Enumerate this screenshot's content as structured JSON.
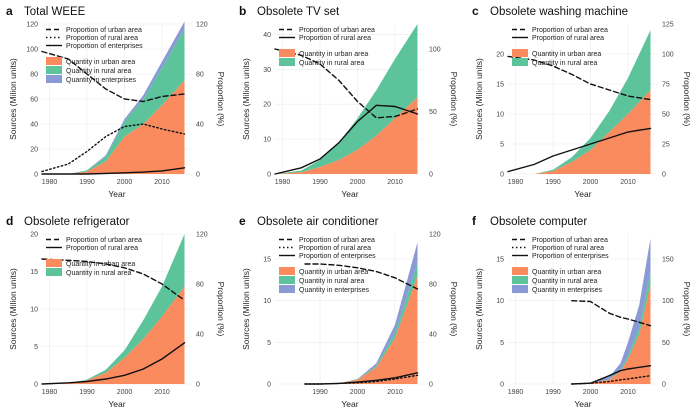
{
  "figure": {
    "xlabel": "Year",
    "ylabel": "Sources (Milion units)",
    "y2label": "Proportion (%)",
    "colors": {
      "urban_fill": "#f98b5e",
      "rural_fill": "#5cc39a",
      "enterprise_fill": "#8a9ad6",
      "line": "#111111"
    }
  },
  "chart_data": [
    {
      "letter": "a",
      "title": "Total WEEE",
      "type": "area",
      "x": [
        1978,
        1985,
        1990,
        1995,
        2000,
        2005,
        2010,
        2016
      ],
      "ylim": [
        0,
        120
      ],
      "yticks": [
        0,
        20,
        40,
        60,
        80,
        100,
        120
      ],
      "y2lim": [
        0,
        120
      ],
      "y2ticks": [
        0,
        40,
        80,
        120
      ],
      "xticks": [
        1980,
        1990,
        2000,
        2010
      ],
      "areas": [
        {
          "name": "Quantity in urban area",
          "color": "#f98b5e",
          "values": [
            0,
            0,
            2,
            10,
            30,
            40,
            55,
            75
          ]
        },
        {
          "name": "Quantity in rural area",
          "color": "#5cc39a",
          "values": [
            0,
            0,
            1,
            4,
            12,
            20,
            30,
            41
          ]
        },
        {
          "name": "Quantity in enterprises",
          "color": "#8a9ad6",
          "values": [
            0,
            0,
            0,
            1,
            2,
            3,
            5,
            6
          ]
        }
      ],
      "lines": [
        {
          "name": "Proportion of urban area",
          "style": "dashed",
          "axis": "right",
          "values": [
            98,
            92,
            80,
            68,
            60,
            58,
            62,
            64
          ]
        },
        {
          "name": "Proportion of rural area",
          "style": "dotted",
          "axis": "right",
          "values": [
            2,
            8,
            18,
            30,
            38,
            40,
            36,
            32
          ]
        },
        {
          "name": "Proportion of enterprises",
          "style": "solid",
          "axis": "right",
          "values": [
            0,
            0,
            0,
            0.5,
            1,
            1.5,
            2.5,
            5
          ]
        }
      ],
      "legend_lines": [
        "Proportion of urban area",
        "Proportion of rural area",
        "Proportion of enterprises"
      ],
      "legend_areas": [
        "Quantity in urban area",
        "Quantity in rural area",
        "Quantity in enterprises"
      ]
    },
    {
      "letter": "b",
      "title": "Obsolete TV set",
      "type": "area",
      "x": [
        1978,
        1985,
        1990,
        1995,
        2000,
        2005,
        2010,
        2016
      ],
      "ylim": [
        0,
        43
      ],
      "yticks": [
        0,
        10,
        20,
        30,
        40
      ],
      "y2lim": [
        0,
        120
      ],
      "y2ticks": [
        0,
        50,
        100
      ],
      "xticks": [
        1980,
        1990,
        2000,
        2010
      ],
      "areas": [
        {
          "name": "Quantity in urban area",
          "color": "#f98b5e",
          "values": [
            0,
            0.5,
            2,
            4,
            7,
            11,
            16,
            22
          ]
        },
        {
          "name": "Quantity in rural area",
          "color": "#5cc39a",
          "values": [
            0,
            0.5,
            2,
            5,
            9,
            13,
            17,
            21
          ]
        }
      ],
      "lines": [
        {
          "name": "Proportion of urban area",
          "style": "dashed",
          "axis": "right",
          "values": [
            100,
            95,
            88,
            75,
            58,
            45,
            46,
            52
          ]
        },
        {
          "name": "Proportion of rural area",
          "style": "solid",
          "axis": "right",
          "values": [
            0,
            5,
            12,
            25,
            42,
            55,
            54,
            48
          ]
        }
      ],
      "legend_lines": [
        "Proportion of urban area",
        "Proportion of rural area"
      ],
      "legend_areas": [
        "Quantity in urban area",
        "Quantity in rural area"
      ]
    },
    {
      "letter": "c",
      "title": "Obsolete washing machine",
      "type": "area",
      "x": [
        1978,
        1985,
        1990,
        1995,
        2000,
        2005,
        2010,
        2016
      ],
      "ylim": [
        0,
        25
      ],
      "yticks": [
        0,
        5,
        10,
        15,
        20
      ],
      "y2lim": [
        0,
        125
      ],
      "y2ticks": [
        0,
        25,
        50,
        75,
        100,
        125
      ],
      "xticks": [
        1980,
        1990,
        2000,
        2010
      ],
      "areas": [
        {
          "name": "Quantity in urban area",
          "color": "#f98b5e",
          "values": [
            0,
            0,
            0.5,
            2,
            4,
            7,
            10,
            14
          ]
        },
        {
          "name": "Quantity in rural area",
          "color": "#5cc39a",
          "values": [
            0,
            0,
            0.2,
            0.8,
            2,
            3.5,
            6,
            10
          ]
        }
      ],
      "lines": [
        {
          "name": "Proportion of urban area",
          "style": "dashed",
          "axis": "right",
          "values": [
            98,
            95,
            90,
            83,
            75,
            70,
            65,
            62
          ]
        },
        {
          "name": "Proportion of rural area",
          "style": "solid",
          "axis": "right",
          "values": [
            2,
            8,
            15,
            20,
            25,
            30,
            35,
            38
          ]
        }
      ],
      "legend_lines": [
        "Proportion of urban area",
        "Proportion of rural area"
      ],
      "legend_areas": [
        "Quantity in urban area",
        "Quantity in rural area"
      ]
    },
    {
      "letter": "d",
      "title": "Obsolete refrigerator",
      "type": "area",
      "x": [
        1978,
        1985,
        1990,
        1995,
        2000,
        2005,
        2010,
        2016
      ],
      "ylim": [
        0,
        20
      ],
      "yticks": [
        0,
        5,
        10,
        15,
        20
      ],
      "y2lim": [
        0,
        120
      ],
      "y2ticks": [
        0,
        40,
        80,
        120
      ],
      "xticks": [
        1980,
        1990,
        2000,
        2010
      ],
      "areas": [
        {
          "name": "Quantity in urban area",
          "color": "#f98b5e",
          "values": [
            0,
            0.1,
            0.5,
            1.5,
            3.5,
            6,
            9,
            13
          ]
        },
        {
          "name": "Quantity in rural area",
          "color": "#5cc39a",
          "values": [
            0,
            0,
            0.1,
            0.4,
            1,
            2.5,
            4,
            7
          ]
        }
      ],
      "lines": [
        {
          "name": "Proportion of urban area",
          "style": "dashed",
          "axis": "right",
          "values": [
            100,
            99,
            98,
            96,
            93,
            88,
            80,
            67
          ]
        },
        {
          "name": "Proportion of rural area",
          "style": "solid",
          "axis": "right",
          "values": [
            0,
            1,
            2,
            4,
            7,
            12,
            20,
            33
          ]
        }
      ],
      "legend_lines": [
        "Proportion of urban area",
        "Proportion of rural area"
      ],
      "legend_areas": [
        "Quantity in urban area",
        "Quantity in rural area"
      ]
    },
    {
      "letter": "e",
      "title": "Obsolete air conditioner",
      "type": "area",
      "x": [
        1986,
        1990,
        1995,
        2000,
        2005,
        2010,
        2016
      ],
      "ylim": [
        0,
        18
      ],
      "yticks": [
        0,
        5,
        10,
        15
      ],
      "y2lim": [
        0,
        120
      ],
      "y2ticks": [
        0,
        40,
        80,
        120
      ],
      "xticks": [
        1990,
        2000,
        2010
      ],
      "areas": [
        {
          "name": "Quantity in urban area",
          "color": "#f98b5e",
          "values": [
            0,
            0,
            0.1,
            0.5,
            2,
            5.5,
            13
          ]
        },
        {
          "name": "Quantity in rural area",
          "color": "#5cc39a",
          "values": [
            0,
            0,
            0,
            0.05,
            0.2,
            0.6,
            1.5
          ]
        },
        {
          "name": "Quantity in enterprises",
          "color": "#8a9ad6",
          "values": [
            0,
            0,
            0,
            0.05,
            0.3,
            1,
            2.5
          ]
        }
      ],
      "lines": [
        {
          "name": "Proportion of urban area",
          "style": "dashed",
          "axis": "right",
          "values": [
            96,
            96,
            95,
            93,
            90,
            85,
            76
          ]
        },
        {
          "name": "Proportion of rural area",
          "style": "dotted",
          "axis": "right",
          "values": [
            0,
            0,
            0.5,
            1,
            2,
            4,
            7
          ]
        },
        {
          "name": "Proportion of enterprises",
          "style": "solid",
          "axis": "right",
          "values": [
            0,
            0,
            0.5,
            1.5,
            3,
            5,
            9
          ]
        }
      ],
      "legend_lines": [
        "Proportion of urban area",
        "Proportion of rural area",
        "Proportion of enterprises"
      ],
      "legend_areas": [
        "Quantity in urban area",
        "Quantity in rural area",
        "Quantity in enterprises"
      ]
    },
    {
      "letter": "f",
      "title": "Obsolete computer",
      "type": "area",
      "x": [
        1995,
        2000,
        2005,
        2008,
        2010,
        2013,
        2016
      ],
      "ylim": [
        0,
        18
      ],
      "yticks": [
        0,
        5,
        10,
        15
      ],
      "y2lim": [
        0,
        180
      ],
      "y2ticks": [
        0,
        50,
        100,
        150
      ],
      "xticks": [
        1980,
        1990,
        2000,
        2010
      ],
      "xlim": [
        1978,
        2018
      ],
      "areas": [
        {
          "name": "Quantity in urban area",
          "color": "#f98b5e",
          "values": [
            0,
            0.1,
            0.5,
            1.5,
            3,
            6,
            12
          ]
        },
        {
          "name": "Quantity in rural area",
          "color": "#5cc39a",
          "values": [
            0,
            0,
            0.05,
            0.2,
            0.4,
            0.8,
            1.5
          ]
        },
        {
          "name": "Quantity in enterprises",
          "color": "#8a9ad6",
          "values": [
            0,
            0.05,
            0.3,
            0.8,
            1.6,
            2.7,
            4
          ]
        }
      ],
      "lines": [
        {
          "name": "Proportion of urban area",
          "style": "dashed",
          "axis": "right",
          "values": [
            100,
            99,
            85,
            80,
            78,
            74,
            70
          ]
        },
        {
          "name": "Proportion of rural area",
          "style": "dotted",
          "axis": "right",
          "values": [
            0,
            1,
            3,
            5,
            6,
            8,
            10
          ]
        },
        {
          "name": "Proportion of enterprises",
          "style": "solid",
          "axis": "right",
          "values": [
            0,
            1,
            10,
            16,
            18,
            20,
            22
          ]
        }
      ],
      "legend_lines": [
        "Proportion of urban area",
        "Proportion of rural area",
        "Proportion of enterprises"
      ],
      "legend_areas": [
        "Quantity in urban area",
        "Quantity in rural area",
        "Quantity in enterprises"
      ]
    }
  ]
}
